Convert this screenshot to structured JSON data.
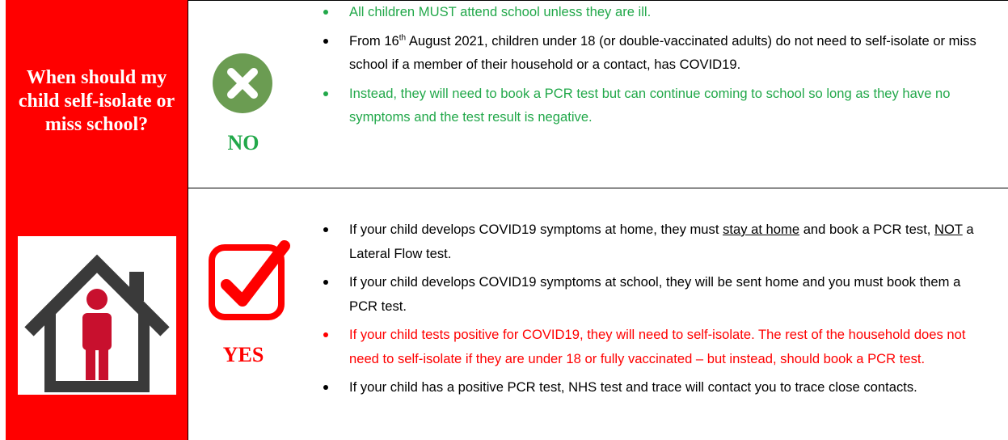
{
  "heading": "When should my child self-isolate or miss school?",
  "no": {
    "label": "NO",
    "bullets": [
      [
        "All children MUST attend school unless they are ill."
      ],
      [
        "From 16",
        "th",
        " August 2021, children under 18 (or double-vaccinated adults) do not need to self-isolate or miss school if a member of their household or a contact, has COVID19."
      ],
      [
        "Instead, they will need to book a PCR test but can continue coming to school so long as they have no symptoms and the test result is negative."
      ]
    ]
  },
  "yes": {
    "label": "YES",
    "bullets": [
      [
        "If your child develops COVID19 symptoms at home, they must ",
        "stay at home",
        " and book a PCR test, ",
        "NOT",
        " a Lateral Flow test."
      ],
      [
        "If your child develops COVID19 symptoms at school, they will be sent home and you must book them a PCR test."
      ],
      [
        "If your child tests positive for COVID19, they will need to self-isolate. The rest of the household does not need to self-isolate if they are under 18 or fully vaccinated – but instead, should book a PCR test."
      ],
      [
        "If your child has a positive PCR test, NHS test and trace will contact you to trace close contacts."
      ]
    ]
  }
}
